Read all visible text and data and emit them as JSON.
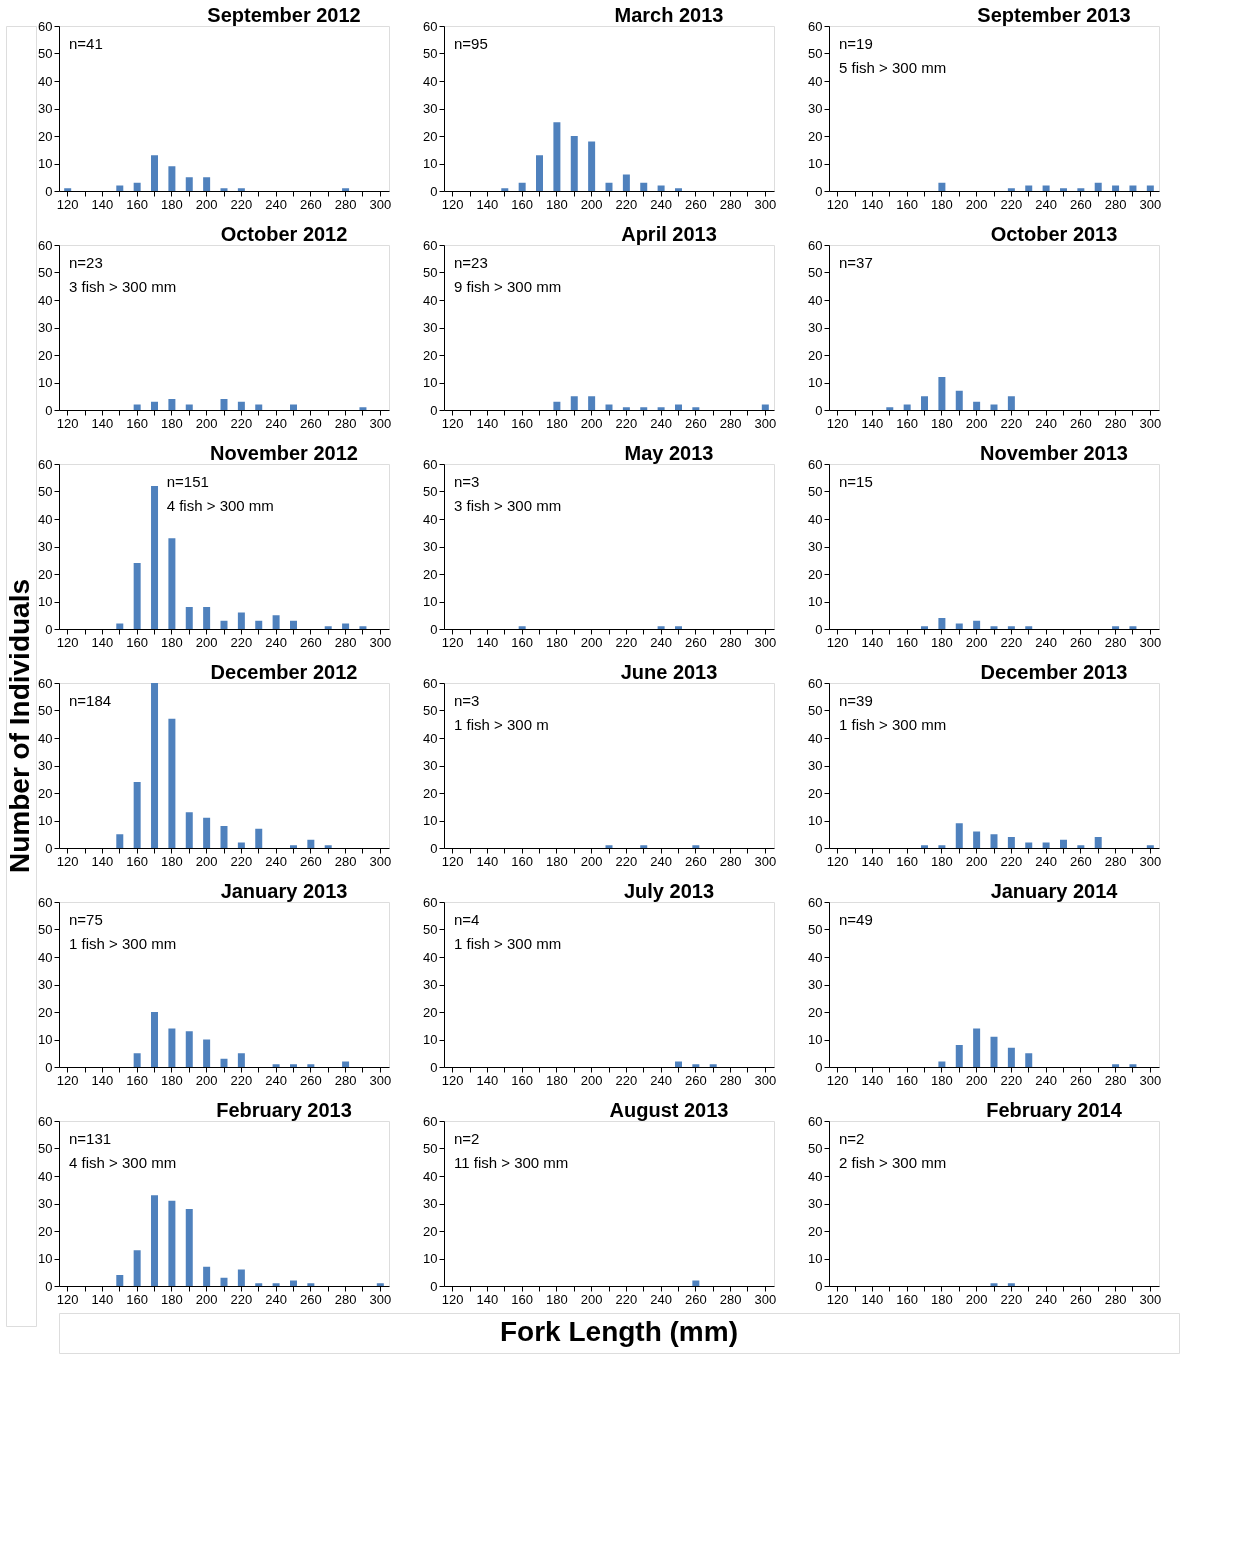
{
  "chart_data": [
    {
      "type": "bar",
      "title": "September 2012",
      "color": "#4f81bd",
      "ylim": [
        0,
        60
      ],
      "yticks": [
        0,
        10,
        20,
        30,
        40,
        50,
        60
      ],
      "grid": false,
      "annotations": [
        "n=41"
      ],
      "categories": [
        "120",
        null,
        "140",
        null,
        "160",
        null,
        "180",
        null,
        "200",
        null,
        "220",
        null,
        "240",
        null,
        "260",
        null,
        "280",
        null,
        "300"
      ],
      "values": [
        1,
        0,
        0,
        2,
        3,
        13,
        9,
        5,
        5,
        1,
        1,
        0,
        0,
        0,
        0,
        0,
        1,
        0,
        0
      ]
    },
    {
      "type": "bar",
      "title": "March 2013",
      "color": "#4f81bd",
      "ylim": [
        0,
        60
      ],
      "yticks": [
        0,
        10,
        20,
        30,
        40,
        50,
        60
      ],
      "grid": false,
      "annotations": [
        "n=95"
      ],
      "categories": [
        "120",
        null,
        "140",
        null,
        "160",
        null,
        "180",
        null,
        "200",
        null,
        "220",
        null,
        "240",
        null,
        "260",
        null,
        "280",
        null,
        "300"
      ],
      "values": [
        0,
        0,
        0,
        1,
        3,
        13,
        25,
        20,
        18,
        3,
        6,
        3,
        2,
        1,
        0,
        0,
        0,
        0,
        0
      ]
    },
    {
      "type": "bar",
      "title": "September 2013",
      "color": "#4f81bd",
      "ylim": [
        0,
        60
      ],
      "yticks": [
        0,
        10,
        20,
        30,
        40,
        50,
        60
      ],
      "grid": false,
      "annotations": [
        "n=19",
        "5 fish > 300 mm"
      ],
      "categories": [
        "120",
        null,
        "140",
        null,
        "160",
        null,
        "180",
        null,
        "200",
        null,
        "220",
        null,
        "240",
        null,
        "260",
        null,
        "280",
        null,
        "300"
      ],
      "values": [
        0,
        0,
        0,
        0,
        0,
        0,
        3,
        0,
        0,
        0,
        1,
        2,
        2,
        1,
        1,
        3,
        2,
        2,
        2
      ]
    },
    {
      "type": "bar",
      "title": "October 2012",
      "color": "#4f81bd",
      "ylim": [
        0,
        60
      ],
      "yticks": [
        0,
        10,
        20,
        30,
        40,
        50,
        60
      ],
      "grid": false,
      "annotations": [
        "n=23",
        "3 fish > 300 mm"
      ],
      "categories": [
        "120",
        null,
        "140",
        null,
        "160",
        null,
        "180",
        null,
        "200",
        null,
        "220",
        null,
        "240",
        null,
        "260",
        null,
        "280",
        null,
        "300"
      ],
      "values": [
        0,
        0,
        0,
        0,
        2,
        3,
        4,
        2,
        0,
        4,
        3,
        2,
        0,
        2,
        0,
        0,
        0,
        1,
        0
      ]
    },
    {
      "type": "bar",
      "title": "April 2013",
      "color": "#4f81bd",
      "ylim": [
        0,
        60
      ],
      "yticks": [
        0,
        10,
        20,
        30,
        40,
        50,
        60
      ],
      "grid": false,
      "annotations": [
        "n=23",
        "9 fish > 300 mm"
      ],
      "categories": [
        "120",
        null,
        "140",
        null,
        "160",
        null,
        "180",
        null,
        "200",
        null,
        "220",
        null,
        "240",
        null,
        "260",
        null,
        "280",
        null,
        "300"
      ],
      "values": [
        0,
        0,
        0,
        0,
        0,
        0,
        3,
        5,
        5,
        2,
        1,
        1,
        1,
        2,
        1,
        0,
        0,
        0,
        2
      ]
    },
    {
      "type": "bar",
      "title": "October 2013",
      "color": "#4f81bd",
      "ylim": [
        0,
        60
      ],
      "yticks": [
        0,
        10,
        20,
        30,
        40,
        50,
        60
      ],
      "grid": false,
      "annotations": [
        "n=37"
      ],
      "categories": [
        "120",
        null,
        "140",
        null,
        "160",
        null,
        "180",
        null,
        "200",
        null,
        "220",
        null,
        "240",
        null,
        "260",
        null,
        "280",
        null,
        "300"
      ],
      "values": [
        0,
        0,
        0,
        1,
        2,
        5,
        12,
        7,
        3,
        2,
        5,
        0,
        0,
        0,
        0,
        0,
        0,
        0,
        0
      ]
    },
    {
      "type": "bar",
      "title": "November 2012",
      "ylabel": "Number of Individuals",
      "color": "#4f81bd",
      "ylim": [
        0,
        60
      ],
      "yticks": [
        0,
        10,
        20,
        30,
        40,
        50,
        60
      ],
      "grid": false,
      "annotations": [
        "n=151",
        "4 fish > 300 mm"
      ],
      "categories": [
        "120",
        null,
        "140",
        null,
        "160",
        null,
        "180",
        null,
        "200",
        null,
        "220",
        null,
        "240",
        null,
        "260",
        null,
        "280",
        null,
        "300"
      ],
      "values": [
        0,
        0,
        0,
        2,
        24,
        52,
        33,
        8,
        8,
        3,
        6,
        3,
        5,
        3,
        0,
        1,
        2,
        1,
        0
      ]
    },
    {
      "type": "bar",
      "title": "May 2013",
      "color": "#4f81bd",
      "ylim": [
        0,
        60
      ],
      "yticks": [
        0,
        10,
        20,
        30,
        40,
        50,
        60
      ],
      "grid": false,
      "annotations": [
        "n=3",
        "3 fish > 300 mm"
      ],
      "categories": [
        "120",
        null,
        "140",
        null,
        "160",
        null,
        "180",
        null,
        "200",
        null,
        "220",
        null,
        "240",
        null,
        "260",
        null,
        "280",
        null,
        "300"
      ],
      "values": [
        0,
        0,
        0,
        0,
        1,
        0,
        0,
        0,
        0,
        0,
        0,
        0,
        1,
        1,
        0,
        0,
        0,
        0,
        0
      ]
    },
    {
      "type": "bar",
      "title": "November 2013",
      "color": "#4f81bd",
      "ylim": [
        0,
        60
      ],
      "yticks": [
        0,
        10,
        20,
        30,
        40,
        50,
        60
      ],
      "grid": false,
      "annotations": [
        "n=15"
      ],
      "categories": [
        "120",
        null,
        "140",
        null,
        "160",
        null,
        "180",
        null,
        "200",
        null,
        "220",
        null,
        "240",
        null,
        "260",
        null,
        "280",
        null,
        "300"
      ],
      "values": [
        0,
        0,
        0,
        0,
        0,
        1,
        4,
        2,
        3,
        1,
        1,
        1,
        0,
        0,
        0,
        0,
        1,
        1,
        0
      ]
    },
    {
      "type": "bar",
      "title": "December 2012",
      "color": "#4f81bd",
      "ylim": [
        0,
        60
      ],
      "yticks": [
        0,
        10,
        20,
        30,
        40,
        50,
        60
      ],
      "grid": false,
      "annotations": [
        "n=184"
      ],
      "categories": [
        "120",
        null,
        "140",
        null,
        "160",
        null,
        "180",
        null,
        "200",
        null,
        "220",
        null,
        "240",
        null,
        "260",
        null,
        "280",
        null,
        "300"
      ],
      "values": [
        0,
        0,
        0,
        5,
        24,
        60,
        47,
        13,
        11,
        8,
        2,
        7,
        0,
        1,
        3,
        1,
        0,
        0,
        0
      ]
    },
    {
      "type": "bar",
      "title": "June 2013",
      "color": "#4f81bd",
      "ylim": [
        0,
        60
      ],
      "yticks": [
        0,
        10,
        20,
        30,
        40,
        50,
        60
      ],
      "grid": false,
      "annotations": [
        "n=3",
        "1 fish > 300 m"
      ],
      "categories": [
        "120",
        null,
        "140",
        null,
        "160",
        null,
        "180",
        null,
        "200",
        null,
        "220",
        null,
        "240",
        null,
        "260",
        null,
        "280",
        null,
        "300"
      ],
      "values": [
        0,
        0,
        0,
        0,
        0,
        0,
        0,
        0,
        0,
        1,
        0,
        1,
        0,
        0,
        1,
        0,
        0,
        0,
        0
      ]
    },
    {
      "type": "bar",
      "title": "December 2013",
      "color": "#4f81bd",
      "ylim": [
        0,
        60
      ],
      "yticks": [
        0,
        10,
        20,
        30,
        40,
        50,
        60
      ],
      "grid": false,
      "annotations": [
        "n=39",
        "1 fish > 300 mm"
      ],
      "categories": [
        "120",
        null,
        "140",
        null,
        "160",
        null,
        "180",
        null,
        "200",
        null,
        "220",
        null,
        "240",
        null,
        "260",
        null,
        "280",
        null,
        "300"
      ],
      "values": [
        0,
        0,
        0,
        0,
        0,
        1,
        1,
        9,
        6,
        5,
        4,
        2,
        2,
        3,
        1,
        4,
        0,
        0,
        1
      ]
    },
    {
      "type": "bar",
      "title": "January 2013",
      "color": "#4f81bd",
      "ylim": [
        0,
        60
      ],
      "yticks": [
        0,
        10,
        20,
        30,
        40,
        50,
        60
      ],
      "grid": false,
      "annotations": [
        "n=75",
        "1 fish > 300 mm"
      ],
      "categories": [
        "120",
        null,
        "140",
        null,
        "160",
        null,
        "180",
        null,
        "200",
        null,
        "220",
        null,
        "240",
        null,
        "260",
        null,
        "280",
        null,
        "300"
      ],
      "values": [
        0,
        0,
        0,
        0,
        5,
        20,
        14,
        13,
        10,
        3,
        5,
        0,
        1,
        1,
        1,
        0,
        2,
        0,
        0
      ]
    },
    {
      "type": "bar",
      "title": "July 2013",
      "color": "#4f81bd",
      "ylim": [
        0,
        60
      ],
      "yticks": [
        0,
        10,
        20,
        30,
        40,
        50,
        60
      ],
      "grid": false,
      "annotations": [
        "n=4",
        "1 fish > 300 mm"
      ],
      "categories": [
        "120",
        null,
        "140",
        null,
        "160",
        null,
        "180",
        null,
        "200",
        null,
        "220",
        null,
        "240",
        null,
        "260",
        null,
        "280",
        null,
        "300"
      ],
      "values": [
        0,
        0,
        0,
        0,
        0,
        0,
        0,
        0,
        0,
        0,
        0,
        0,
        0,
        2,
        1,
        1,
        0,
        0,
        0
      ]
    },
    {
      "type": "bar",
      "title": "January 2014",
      "color": "#4f81bd",
      "ylim": [
        0,
        60
      ],
      "yticks": [
        0,
        10,
        20,
        30,
        40,
        50,
        60
      ],
      "grid": false,
      "annotations": [
        "n=49"
      ],
      "categories": [
        "120",
        null,
        "140",
        null,
        "160",
        null,
        "180",
        null,
        "200",
        null,
        "220",
        null,
        "240",
        null,
        "260",
        null,
        "280",
        null,
        "300"
      ],
      "values": [
        0,
        0,
        0,
        0,
        0,
        0,
        2,
        8,
        14,
        11,
        7,
        5,
        0,
        0,
        0,
        0,
        1,
        1,
        0
      ]
    },
    {
      "type": "bar",
      "title": "February 2013",
      "color": "#4f81bd",
      "ylim": [
        0,
        60
      ],
      "yticks": [
        0,
        10,
        20,
        30,
        40,
        50,
        60
      ],
      "grid": false,
      "annotations": [
        "n=131",
        "4 fish > 300 mm"
      ],
      "categories": [
        "120",
        null,
        "140",
        null,
        "160",
        null,
        "180",
        null,
        "200",
        null,
        "220",
        null,
        "240",
        null,
        "260",
        null,
        "280",
        null,
        "300"
      ],
      "values": [
        0,
        0,
        0,
        4,
        13,
        33,
        31,
        28,
        7,
        3,
        6,
        1,
        1,
        2,
        1,
        0,
        0,
        0,
        1
      ]
    },
    {
      "type": "bar",
      "title": "August 2013",
      "xlabel": "Fork Length (mm)",
      "color": "#4f81bd",
      "ylim": [
        0,
        60
      ],
      "yticks": [
        0,
        10,
        20,
        30,
        40,
        50,
        60
      ],
      "grid": false,
      "annotations": [
        "n=2",
        "11 fish > 300 mm"
      ],
      "categories": [
        "120",
        null,
        "140",
        null,
        "160",
        null,
        "180",
        null,
        "200",
        null,
        "220",
        null,
        "240",
        null,
        "260",
        null,
        "280",
        null,
        "300"
      ],
      "values": [
        0,
        0,
        0,
        0,
        0,
        0,
        0,
        0,
        0,
        0,
        0,
        0,
        0,
        0,
        2,
        0,
        0,
        0,
        0
      ]
    },
    {
      "type": "bar",
      "title": "February 2014",
      "color": "#4f81bd",
      "ylim": [
        0,
        60
      ],
      "yticks": [
        0,
        10,
        20,
        30,
        40,
        50,
        60
      ],
      "grid": false,
      "annotations": [
        "n=2",
        "2 fish > 300 mm"
      ],
      "categories": [
        "120",
        null,
        "140",
        null,
        "160",
        null,
        "180",
        null,
        "200",
        null,
        "220",
        null,
        "240",
        null,
        "260",
        null,
        "280",
        null,
        "300"
      ],
      "values": [
        0,
        0,
        0,
        0,
        0,
        0,
        0,
        0,
        0,
        1,
        1,
        0,
        0,
        0,
        0,
        0,
        0,
        0,
        0
      ]
    }
  ]
}
